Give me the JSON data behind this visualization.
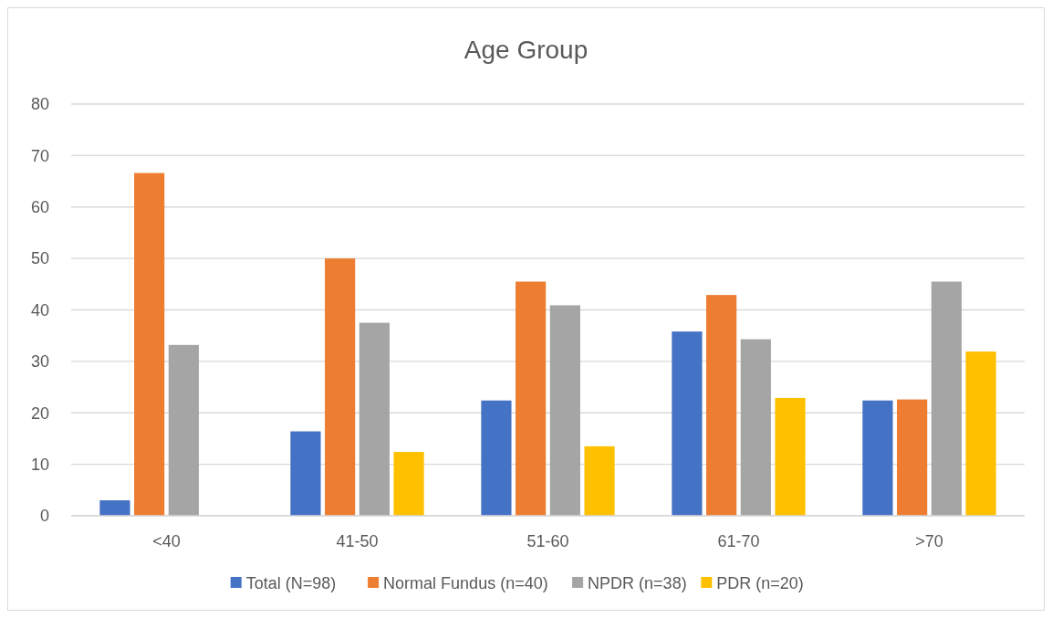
{
  "chart_data": {
    "type": "bar",
    "title": "Age Group",
    "categories": [
      "<40",
      "41-50",
      "51-60",
      "61-70",
      ">70"
    ],
    "series": [
      {
        "name": "Total (N=98)",
        "color": "#4472c4",
        "values": [
          3.0,
          16.4,
          22.4,
          35.8,
          22.4
        ]
      },
      {
        "name": "Normal Fundus (n=40)",
        "color": "#ed7d31",
        "values": [
          66.6,
          50.0,
          45.5,
          42.9,
          22.6
        ]
      },
      {
        "name": "NPDR (n=38)",
        "color": "#a5a5a5",
        "values": [
          33.2,
          37.5,
          40.9,
          34.3,
          45.5
        ]
      },
      {
        "name": "PDR (n=20)",
        "color": "#ffc000",
        "values": [
          null,
          12.4,
          13.5,
          22.9,
          31.9
        ]
      }
    ],
    "ylim": [
      0,
      80
    ],
    "yticks": [
      0,
      10,
      20,
      30,
      40,
      50,
      60,
      70,
      80
    ],
    "grid": "y",
    "legend": "bottom"
  }
}
